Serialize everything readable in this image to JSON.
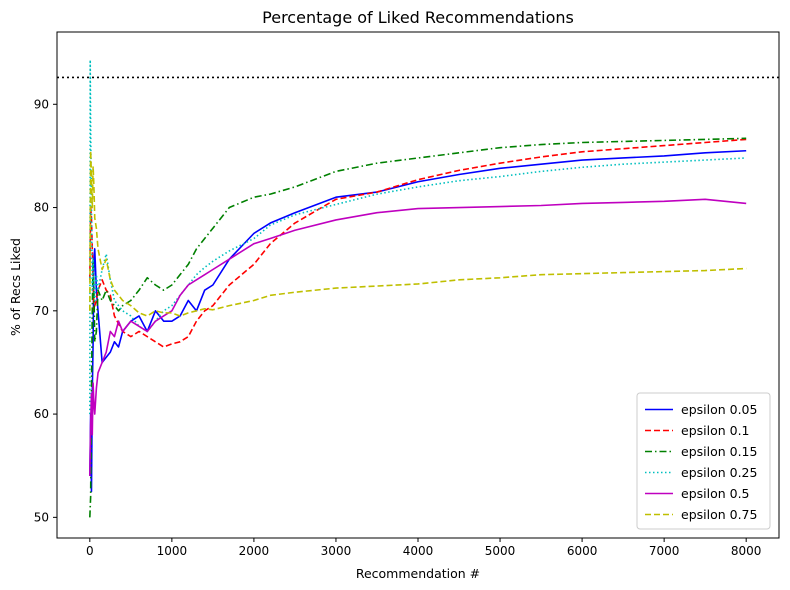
{
  "chart_data": {
    "type": "line",
    "title": "Percentage of Liked Recommendations",
    "xlabel": "Recommendation #",
    "ylabel": "% of Recs Liked",
    "xlim": [
      -400,
      8400
    ],
    "ylim": [
      48,
      97
    ],
    "xticks": [
      0,
      1000,
      2000,
      3000,
      4000,
      5000,
      6000,
      7000,
      8000
    ],
    "yticks": [
      50,
      60,
      70,
      80,
      90
    ],
    "xtick_labels": [
      "0",
      "1000",
      "2000",
      "3000",
      "4000",
      "5000",
      "6000",
      "7000",
      "8000"
    ],
    "ytick_labels": [
      "50",
      "60",
      "70",
      "80",
      "90"
    ],
    "grid": false,
    "legend_position": "lower-right",
    "reference_line": {
      "y": 92.6,
      "color": "#000000",
      "style": "dotted"
    },
    "series": [
      {
        "name": "epsilon 0.05",
        "color": "#0000ff",
        "dash": "solid",
        "x": [
          0,
          10,
          20,
          30,
          40,
          50,
          60,
          80,
          100,
          150,
          200,
          250,
          300,
          350,
          400,
          500,
          600,
          700,
          800,
          900,
          1000,
          1100,
          1200,
          1300,
          1400,
          1500,
          1700,
          2000,
          2200,
          2500,
          3000,
          3500,
          4000,
          4500,
          5000,
          5500,
          6000,
          6500,
          7000,
          7500,
          8000
        ],
        "y": [
          54,
          60,
          52.5,
          62,
          67,
          75,
          76,
          72,
          70,
          65,
          65.5,
          66,
          67,
          66.5,
          68,
          69,
          69.5,
          68,
          70,
          69,
          69,
          69.5,
          71,
          70,
          72,
          72.5,
          75,
          77.5,
          78.5,
          79.5,
          81,
          81.5,
          82.5,
          83.2,
          83.8,
          84.2,
          84.6,
          84.8,
          85,
          85.3,
          85.5
        ]
      },
      {
        "name": "epsilon 0.1",
        "color": "#ff0000",
        "dash": "dashed",
        "x": [
          0,
          10,
          20,
          30,
          40,
          50,
          60,
          80,
          100,
          150,
          200,
          250,
          300,
          400,
          500,
          600,
          700,
          800,
          900,
          1000,
          1100,
          1200,
          1300,
          1400,
          1500,
          1700,
          2000,
          2200,
          2500,
          3000,
          3500,
          4000,
          4500,
          5000,
          5500,
          6000,
          6500,
          7000,
          7500,
          8000
        ],
        "y": [
          73,
          80,
          79,
          76,
          73,
          70,
          70.5,
          71,
          72,
          73,
          72,
          71.5,
          69.5,
          68,
          67.5,
          68,
          67.5,
          67,
          66.5,
          66.8,
          67,
          67.5,
          69,
          70,
          70.5,
          72.5,
          74.5,
          76.5,
          78.5,
          80.8,
          81.5,
          82.7,
          83.6,
          84.3,
          84.9,
          85.4,
          85.7,
          86,
          86.3,
          86.6
        ]
      },
      {
        "name": "epsilon 0.15",
        "color": "#008000",
        "dash": "dashdot",
        "x": [
          0,
          10,
          20,
          30,
          40,
          50,
          60,
          80,
          100,
          150,
          200,
          250,
          300,
          350,
          400,
          500,
          600,
          700,
          800,
          900,
          1000,
          1100,
          1200,
          1300,
          1400,
          1500,
          1700,
          2000,
          2200,
          2500,
          3000,
          3500,
          4000,
          4500,
          5000,
          5500,
          6000,
          6500,
          7000,
          7500,
          8000
        ],
        "y": [
          50,
          52,
          62,
          70,
          75,
          72,
          67,
          68,
          72,
          71,
          72,
          71,
          70.5,
          70,
          70.5,
          71,
          72,
          73.2,
          72.5,
          72,
          72.5,
          73.5,
          74.5,
          76,
          77,
          78,
          80,
          81,
          81.3,
          82,
          83.5,
          84.3,
          84.8,
          85.3,
          85.8,
          86.1,
          86.3,
          86.4,
          86.5,
          86.6,
          86.7
        ]
      },
      {
        "name": "epsilon 0.25",
        "color": "#00bfbf",
        "dash": "dotted",
        "x": [
          0,
          5,
          10,
          20,
          30,
          40,
          50,
          60,
          80,
          100,
          150,
          200,
          250,
          300,
          400,
          500,
          600,
          700,
          800,
          900,
          1000,
          1100,
          1200,
          1300,
          1400,
          1500,
          1700,
          2000,
          2200,
          2500,
          3000,
          3500,
          4000,
          4500,
          5000,
          5500,
          6000,
          6500,
          7000,
          7500,
          8000
        ],
        "y": [
          60,
          94.3,
          88,
          80,
          72,
          75,
          73,
          71,
          73.5,
          72,
          74,
          75.5,
          73,
          71,
          70,
          69.5,
          68.5,
          68,
          69,
          70,
          70.5,
          71.5,
          72.5,
          73.5,
          74.2,
          74.8,
          75.8,
          77,
          78.3,
          79.3,
          80.3,
          81.3,
          82,
          82.6,
          83,
          83.5,
          83.9,
          84.2,
          84.4,
          84.6,
          84.8
        ]
      },
      {
        "name": "epsilon 0.5",
        "color": "#bf00bf",
        "dash": "solid",
        "x": [
          0,
          10,
          20,
          30,
          40,
          50,
          60,
          80,
          100,
          150,
          200,
          250,
          300,
          350,
          400,
          500,
          600,
          700,
          800,
          900,
          1000,
          1100,
          1200,
          1300,
          1400,
          1500,
          1700,
          2000,
          2200,
          2500,
          3000,
          3500,
          4000,
          4500,
          5000,
          5500,
          6000,
          6500,
          7000,
          7500,
          8000
        ],
        "y": [
          54,
          59,
          62,
          58,
          63,
          61,
          60,
          62.5,
          64,
          65,
          66,
          68,
          67.5,
          69,
          68,
          69,
          68.5,
          68,
          69,
          69.5,
          70,
          71.5,
          72.5,
          73,
          73.5,
          74,
          75,
          76.5,
          77,
          77.8,
          78.8,
          79.5,
          79.9,
          80,
          80.1,
          80.2,
          80.4,
          80.5,
          80.6,
          80.8,
          80.4
        ]
      },
      {
        "name": "epsilon 0.75",
        "color": "#bfbf00",
        "dash": "dashed",
        "x": [
          0,
          10,
          20,
          30,
          40,
          50,
          60,
          80,
          100,
          150,
          200,
          250,
          300,
          400,
          500,
          600,
          700,
          800,
          900,
          1000,
          1100,
          1200,
          1300,
          1400,
          1500,
          1700,
          2000,
          2200,
          2500,
          3000,
          3500,
          4000,
          4500,
          5000,
          5500,
          6000,
          6500,
          7000,
          7500,
          8000
        ],
        "y": [
          70,
          85.5,
          83,
          80,
          84,
          82,
          79,
          78,
          76,
          74,
          75,
          73,
          72,
          71,
          70.5,
          69.8,
          69.5,
          70,
          69.8,
          69.8,
          69.5,
          69.8,
          70,
          70.2,
          70.1,
          70.5,
          71,
          71.5,
          71.8,
          72.2,
          72.4,
          72.6,
          73,
          73.2,
          73.5,
          73.6,
          73.7,
          73.8,
          73.9,
          74.1
        ]
      }
    ]
  }
}
